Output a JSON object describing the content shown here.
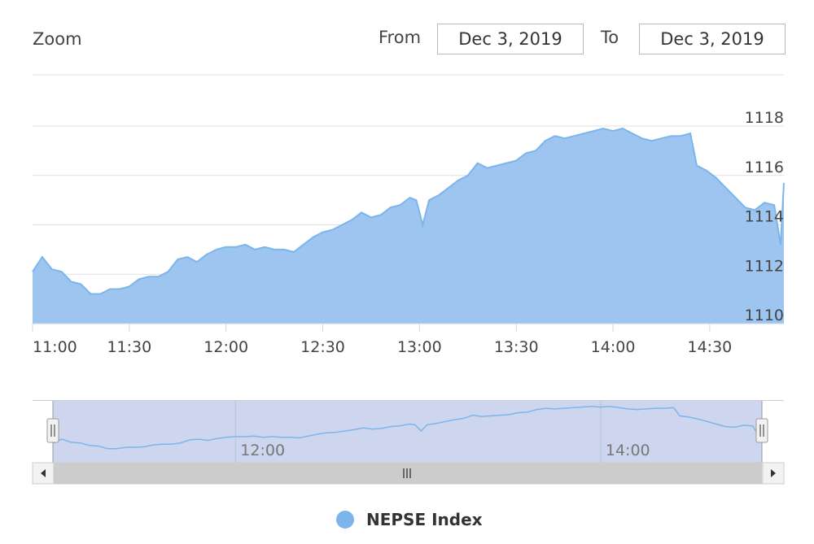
{
  "toolbar": {
    "zoom_label": "Zoom",
    "from_label": "From",
    "from_value": "Dec 3, 2019",
    "to_label": "To",
    "to_value": "Dec 3, 2019"
  },
  "colors": {
    "series_line": "#7cb5ec",
    "series_fill": "#9dc5ef",
    "navigator_mask": "#cdd6ee",
    "scrollbar_track": "#e6e6e6",
    "scrollbar_thumb": "#cccccc",
    "grid": "#e0e0e0"
  },
  "chart_data": {
    "type": "area",
    "title": "",
    "xlabel": "",
    "ylabel": "",
    "x_ticks": [
      "11:00",
      "11:30",
      "12:00",
      "12:30",
      "13:00",
      "13:30",
      "14:00",
      "14:30"
    ],
    "y_ticks": [
      1110,
      1112,
      1114,
      1116,
      1118
    ],
    "ylim": [
      1110,
      1118
    ],
    "grid": true,
    "legend_position": "bottom-center",
    "navigator_ticks": [
      "12:00",
      "14:00"
    ],
    "series": [
      {
        "name": "NEPSE Index",
        "points": [
          [
            "11:00",
            1112.1
          ],
          [
            "11:03",
            1112.7
          ],
          [
            "11:06",
            1112.2
          ],
          [
            "11:09",
            1112.1
          ],
          [
            "11:12",
            1111.7
          ],
          [
            "11:15",
            1111.6
          ],
          [
            "11:18",
            1111.2
          ],
          [
            "11:21",
            1111.2
          ],
          [
            "11:24",
            1111.4
          ],
          [
            "11:27",
            1111.4
          ],
          [
            "11:30",
            1111.5
          ],
          [
            "11:33",
            1111.8
          ],
          [
            "11:36",
            1111.9
          ],
          [
            "11:39",
            1111.9
          ],
          [
            "11:42",
            1112.1
          ],
          [
            "11:45",
            1112.6
          ],
          [
            "11:48",
            1112.7
          ],
          [
            "11:51",
            1112.5
          ],
          [
            "11:54",
            1112.8
          ],
          [
            "11:57",
            1113.0
          ],
          [
            "12:00",
            1113.1
          ],
          [
            "12:03",
            1113.1
          ],
          [
            "12:06",
            1113.2
          ],
          [
            "12:09",
            1113.0
          ],
          [
            "12:12",
            1113.1
          ],
          [
            "12:15",
            1113.0
          ],
          [
            "12:18",
            1113.0
          ],
          [
            "12:21",
            1112.9
          ],
          [
            "12:24",
            1113.2
          ],
          [
            "12:27",
            1113.5
          ],
          [
            "12:30",
            1113.7
          ],
          [
            "12:33",
            1113.8
          ],
          [
            "12:36",
            1114.0
          ],
          [
            "12:39",
            1114.2
          ],
          [
            "12:42",
            1114.5
          ],
          [
            "12:45",
            1114.3
          ],
          [
            "12:48",
            1114.4
          ],
          [
            "12:51",
            1114.7
          ],
          [
            "12:54",
            1114.8
          ],
          [
            "12:57",
            1115.1
          ],
          [
            "12:59",
            1115.0
          ],
          [
            "13:01",
            1114.0
          ],
          [
            "13:03",
            1115.0
          ],
          [
            "13:06",
            1115.2
          ],
          [
            "13:09",
            1115.5
          ],
          [
            "13:12",
            1115.8
          ],
          [
            "13:15",
            1116.0
          ],
          [
            "13:18",
            1116.5
          ],
          [
            "13:21",
            1116.3
          ],
          [
            "13:24",
            1116.4
          ],
          [
            "13:27",
            1116.5
          ],
          [
            "13:30",
            1116.6
          ],
          [
            "13:33",
            1116.9
          ],
          [
            "13:36",
            1117.0
          ],
          [
            "13:39",
            1117.4
          ],
          [
            "13:42",
            1117.6
          ],
          [
            "13:45",
            1117.5
          ],
          [
            "13:48",
            1117.6
          ],
          [
            "13:51",
            1117.7
          ],
          [
            "13:54",
            1117.8
          ],
          [
            "13:57",
            1117.9
          ],
          [
            "14:00",
            1117.8
          ],
          [
            "14:03",
            1117.9
          ],
          [
            "14:06",
            1117.7
          ],
          [
            "14:09",
            1117.5
          ],
          [
            "14:12",
            1117.4
          ],
          [
            "14:15",
            1117.5
          ],
          [
            "14:18",
            1117.6
          ],
          [
            "14:21",
            1117.6
          ],
          [
            "14:24",
            1117.7
          ],
          [
            "14:26",
            1116.4
          ],
          [
            "14:29",
            1116.2
          ],
          [
            "14:32",
            1115.9
          ],
          [
            "14:35",
            1115.5
          ],
          [
            "14:38",
            1115.1
          ],
          [
            "14:41",
            1114.7
          ],
          [
            "14:44",
            1114.6
          ],
          [
            "14:47",
            1114.9
          ],
          [
            "14:50",
            1114.8
          ],
          [
            "14:52",
            1113.2
          ],
          [
            "14:53",
            1115.7
          ]
        ]
      }
    ]
  }
}
